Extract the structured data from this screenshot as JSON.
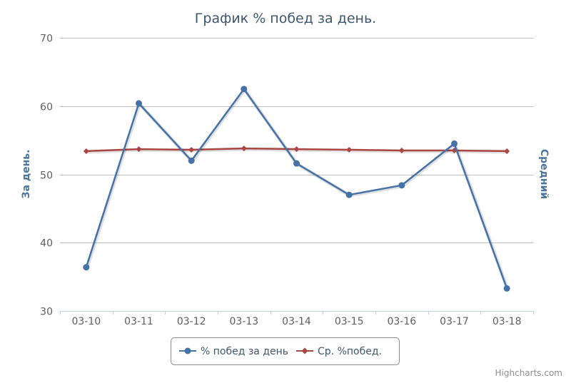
{
  "chart_data": {
    "type": "line",
    "title": "График % побед за день.",
    "y_axis_left_label": "За день.",
    "y_axis_right_label": "Средний",
    "categories": [
      "03-10",
      "03-11",
      "03-12",
      "03-13",
      "03-14",
      "03-15",
      "03-16",
      "03-17",
      "03-18"
    ],
    "ylim": [
      30,
      70
    ],
    "yticks": [
      30,
      40,
      50,
      60,
      70
    ],
    "grid": true,
    "legend_position": "bottom-center",
    "series": [
      {
        "name": "% побед за день",
        "color": "#4572A7",
        "marker": "circle",
        "values": [
          36.4,
          60.4,
          52.0,
          62.5,
          51.6,
          47.0,
          48.4,
          54.5,
          33.3
        ]
      },
      {
        "name": "Ср. %побед.",
        "color": "#AA4643",
        "marker": "diamond",
        "values": [
          53.4,
          53.7,
          53.6,
          53.8,
          53.7,
          53.6,
          53.5,
          53.5,
          53.4
        ]
      }
    ],
    "credits": "Highcharts.com"
  }
}
